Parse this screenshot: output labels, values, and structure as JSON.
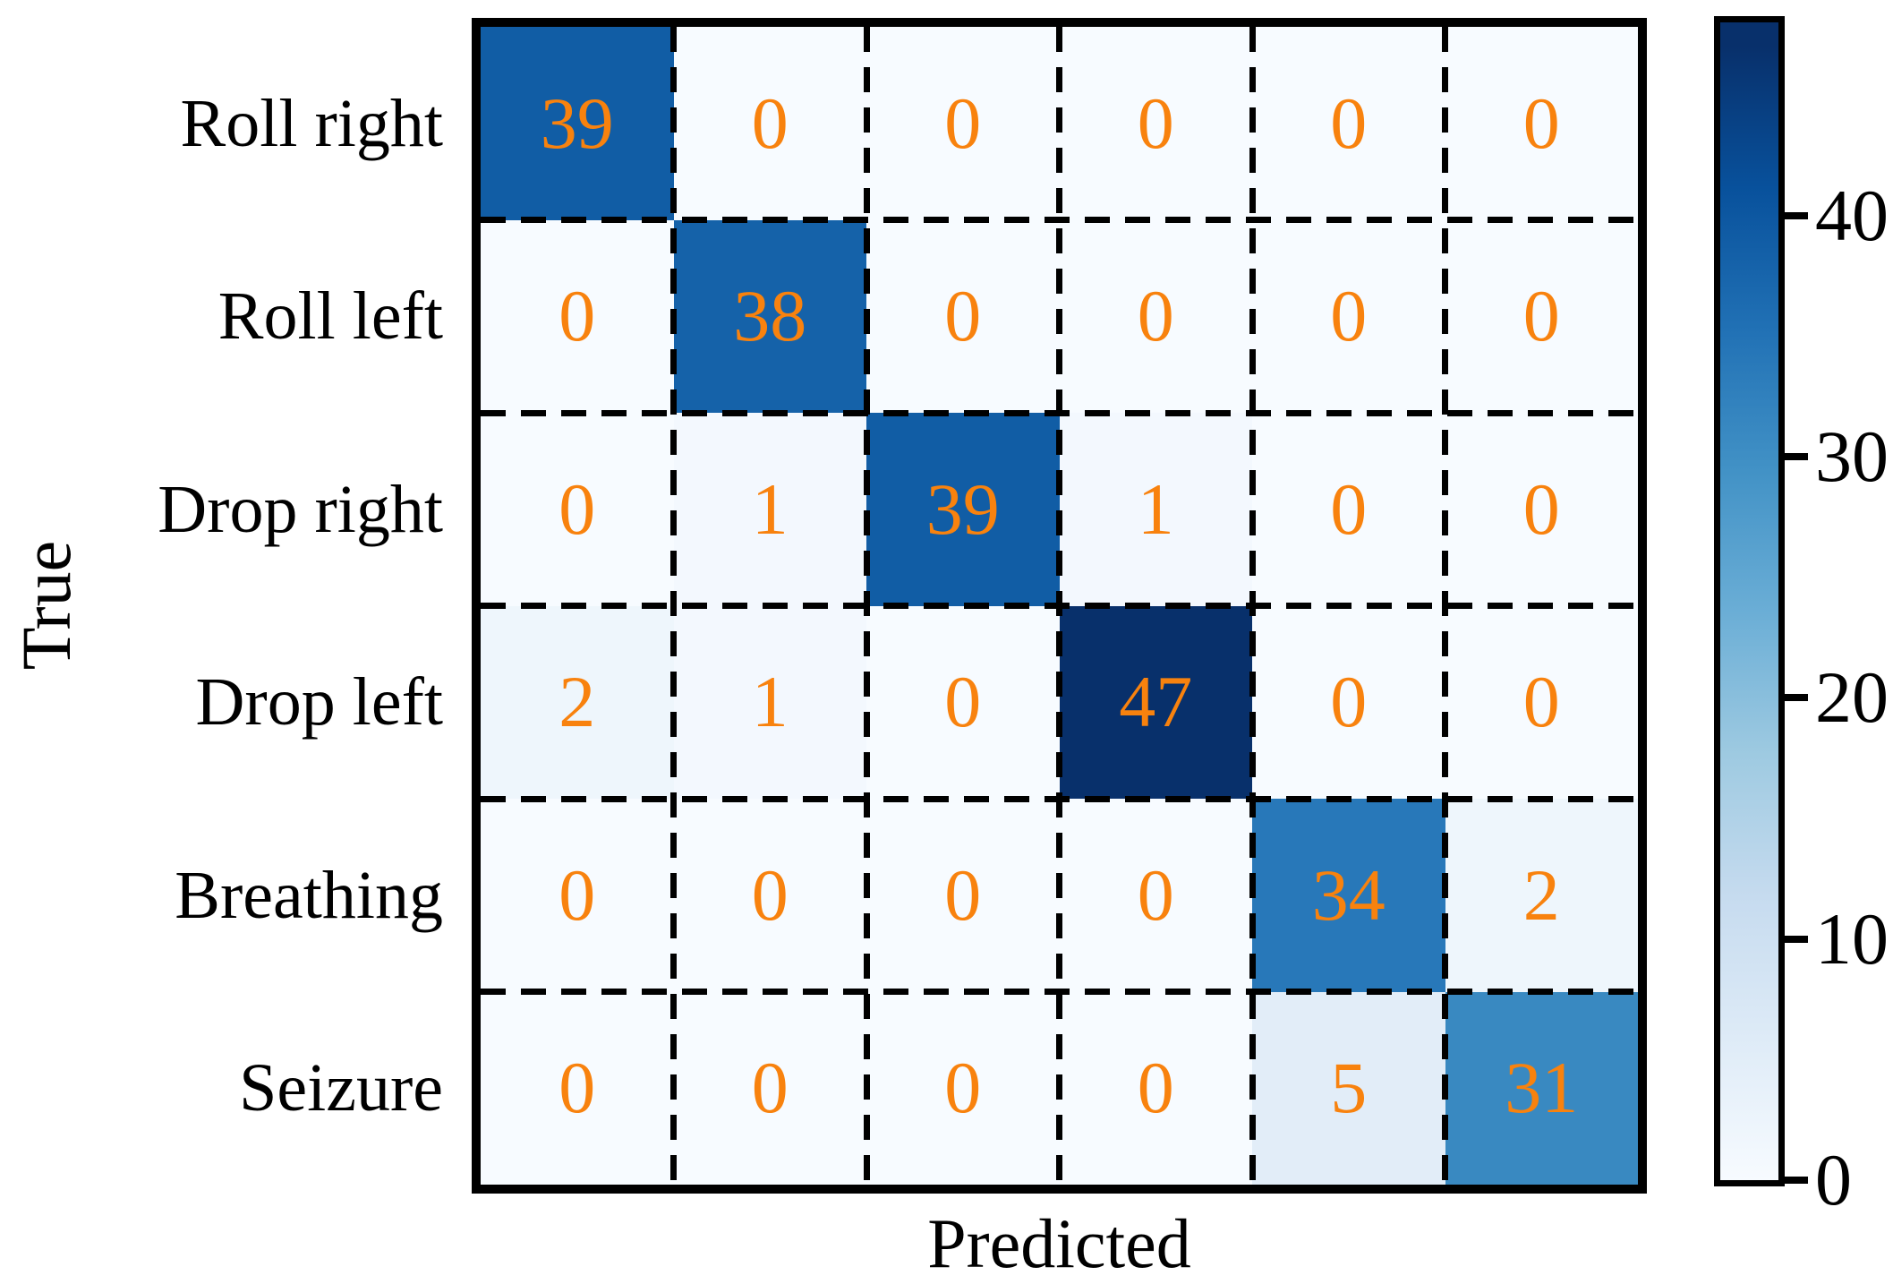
{
  "figure": {
    "background": "#ffffff"
  },
  "chart_data": {
    "type": "heatmap",
    "subtype": "confusion-matrix",
    "title": "",
    "xlabel": "Predicted",
    "ylabel": "True",
    "categories": [
      "Roll right",
      "Roll left",
      "Drop right",
      "Drop left",
      "Breathing",
      "Seizure"
    ],
    "matrix": [
      [
        39,
        0,
        0,
        0,
        0,
        0
      ],
      [
        0,
        38,
        0,
        0,
        0,
        0
      ],
      [
        0,
        1,
        39,
        1,
        0,
        0
      ],
      [
        2,
        1,
        0,
        47,
        0,
        0
      ],
      [
        0,
        0,
        0,
        0,
        34,
        2
      ],
      [
        0,
        0,
        0,
        0,
        5,
        31
      ]
    ],
    "vmin": 0,
    "vmax": 47,
    "annotation_color": "#f8820e",
    "grid": {
      "style": "dashed",
      "color": "#000000"
    },
    "border_color": "#000000",
    "colormap": {
      "name": "Blues",
      "stops": [
        [
          0.0,
          "#f7fbff"
        ],
        [
          0.125,
          "#deebf7"
        ],
        [
          0.25,
          "#c6dbef"
        ],
        [
          0.375,
          "#9ecae1"
        ],
        [
          0.5,
          "#6baed6"
        ],
        [
          0.625,
          "#4292c6"
        ],
        [
          0.75,
          "#2171b5"
        ],
        [
          0.875,
          "#08519c"
        ],
        [
          1.0,
          "#08306b"
        ]
      ]
    },
    "colorbar": {
      "position": "right",
      "ticks": [
        0,
        10,
        20,
        30,
        40
      ],
      "axis_min": 0,
      "axis_max": 48
    }
  }
}
